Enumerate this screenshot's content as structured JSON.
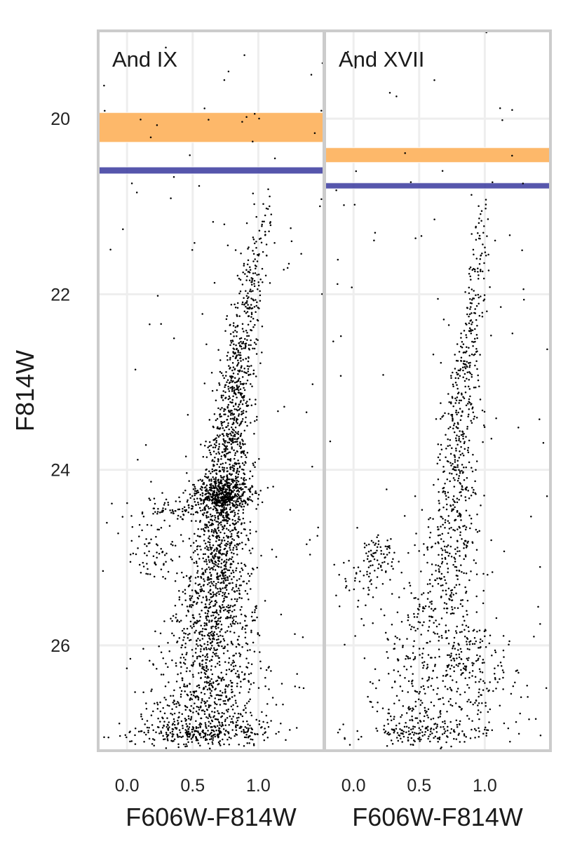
{
  "figure": {
    "ylabel": "F814W",
    "colors": {
      "points": "#000000",
      "band_orange": "#fdb462",
      "band_blue": "#3f3fa0",
      "frame": "#cccccc",
      "grid": "#eeeeee"
    }
  },
  "chart_data": [
    {
      "type": "scatter",
      "panel_label": "And IX",
      "xlabel": "F606W-F814W",
      "ylabel": "F814W",
      "xlim": [
        -0.22,
        1.5
      ],
      "ylim": [
        27.2,
        19.0
      ],
      "y_inverted": true,
      "x_ticks": [
        "0.0",
        "0.5",
        "1.0"
      ],
      "y_ticks": [
        "20",
        "22",
        "24",
        "26"
      ],
      "grid": true,
      "bands": [
        {
          "color": "orange",
          "y_from": 19.93,
          "y_to": 20.27
        },
        {
          "color": "blue",
          "y_from": 20.55,
          "y_to": 20.63
        }
      ],
      "sequence": [
        {
          "y": 20.9,
          "x": 1.05,
          "sd": 0.06,
          "weight": 0.6
        },
        {
          "y": 21.5,
          "x": 1.0,
          "sd": 0.06,
          "weight": 0.9
        },
        {
          "y": 22.0,
          "x": 0.93,
          "sd": 0.06,
          "weight": 1.3
        },
        {
          "y": 22.5,
          "x": 0.88,
          "sd": 0.06,
          "weight": 1.8
        },
        {
          "y": 23.0,
          "x": 0.83,
          "sd": 0.07,
          "weight": 2.4
        },
        {
          "y": 23.5,
          "x": 0.79,
          "sd": 0.08,
          "weight": 3.0
        },
        {
          "y": 24.0,
          "x": 0.76,
          "sd": 0.09,
          "weight": 3.5
        },
        {
          "y": 24.5,
          "x": 0.72,
          "sd": 0.1,
          "weight": 3.8
        },
        {
          "y": 25.0,
          "x": 0.7,
          "sd": 0.12,
          "weight": 3.8
        },
        {
          "y": 25.5,
          "x": 0.68,
          "sd": 0.14,
          "weight": 3.8
        },
        {
          "y": 26.0,
          "x": 0.66,
          "sd": 0.18,
          "weight": 3.8
        },
        {
          "y": 26.5,
          "x": 0.62,
          "sd": 0.22,
          "weight": 4.0
        },
        {
          "y": 27.0,
          "x": 0.58,
          "sd": 0.26,
          "weight": 4.0
        }
      ],
      "clumps": [
        {
          "x": 0.72,
          "y": 24.3,
          "sx": 0.12,
          "sy": 0.1,
          "n": 420
        },
        {
          "x": 0.35,
          "y": 24.45,
          "sx": 0.12,
          "sy": 0.06,
          "n": 60
        },
        {
          "x": 0.2,
          "y": 24.9,
          "sx": 0.1,
          "sy": 0.2,
          "n": 70
        }
      ],
      "n_points": 3300,
      "field_points": 110
    },
    {
      "type": "scatter",
      "panel_label": "And XVII",
      "xlabel": "F606W-F814W",
      "ylabel": "F814W",
      "xlim": [
        -0.22,
        1.5
      ],
      "ylim": [
        27.2,
        19.0
      ],
      "y_inverted": true,
      "x_ticks": [
        "0.0",
        "0.5",
        "1.0"
      ],
      "y_ticks": [
        "20",
        "22",
        "24",
        "26"
      ],
      "grid": true,
      "bands": [
        {
          "color": "orange",
          "y_from": 20.33,
          "y_to": 20.5
        },
        {
          "color": "blue",
          "y_from": 20.73,
          "y_to": 20.8
        }
      ],
      "sequence": [
        {
          "y": 21.0,
          "x": 1.0,
          "sd": 0.05,
          "weight": 0.4
        },
        {
          "y": 21.5,
          "x": 0.97,
          "sd": 0.05,
          "weight": 0.6
        },
        {
          "y": 22.0,
          "x": 0.93,
          "sd": 0.05,
          "weight": 0.9
        },
        {
          "y": 22.5,
          "x": 0.89,
          "sd": 0.05,
          "weight": 1.1
        },
        {
          "y": 23.0,
          "x": 0.84,
          "sd": 0.06,
          "weight": 1.3
        },
        {
          "y": 23.5,
          "x": 0.8,
          "sd": 0.07,
          "weight": 1.5
        },
        {
          "y": 24.0,
          "x": 0.78,
          "sd": 0.08,
          "weight": 1.7
        },
        {
          "y": 24.5,
          "x": 0.76,
          "sd": 0.09,
          "weight": 1.8
        },
        {
          "y": 25.0,
          "x": 0.72,
          "sd": 0.12,
          "weight": 1.9
        },
        {
          "y": 25.5,
          "x": 0.66,
          "sd": 0.15,
          "weight": 2.0
        },
        {
          "y": 26.0,
          "x": 0.63,
          "sd": 0.2,
          "weight": 2.2
        },
        {
          "y": 26.5,
          "x": 0.6,
          "sd": 0.26,
          "weight": 2.4
        },
        {
          "y": 27.0,
          "x": 0.55,
          "sd": 0.3,
          "weight": 2.4
        }
      ],
      "clumps": [
        {
          "x": 0.2,
          "y": 25.0,
          "sx": 0.07,
          "sy": 0.12,
          "n": 70
        },
        {
          "x": 0.05,
          "y": 25.3,
          "sx": 0.08,
          "sy": 0.15,
          "n": 40
        },
        {
          "x": 0.95,
          "y": 26.3,
          "sx": 0.18,
          "sy": 0.25,
          "n": 110
        }
      ],
      "n_points": 1500,
      "field_points": 90
    }
  ]
}
